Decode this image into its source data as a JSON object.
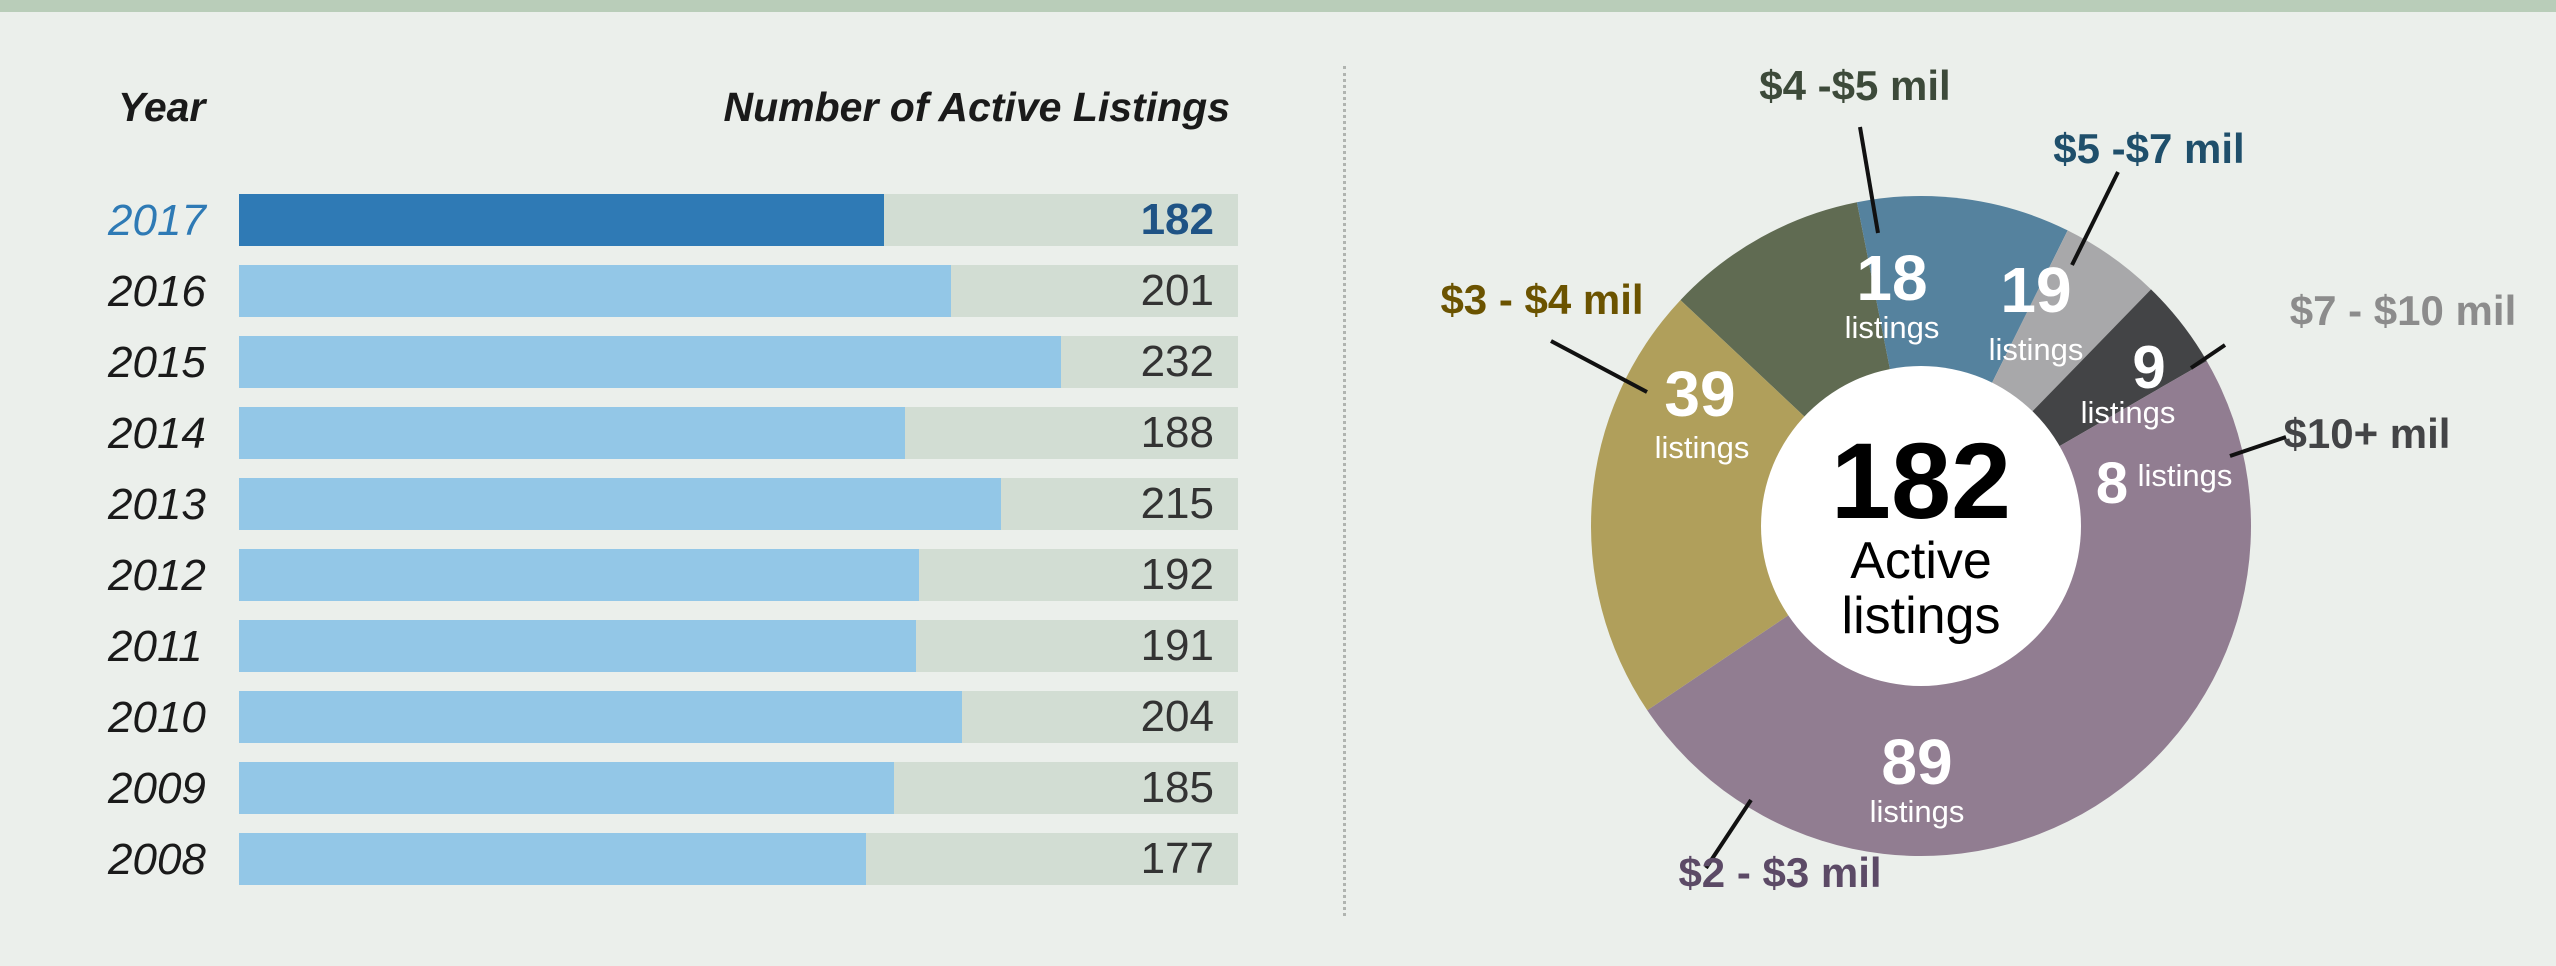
{
  "headers": {
    "year": "Year",
    "count": "Number of Active Listings"
  },
  "colors": {
    "bar": "#93c7e7",
    "bar_highlight": "#2f7ab5",
    "track": "#d2ddd3",
    "value_highlight": "#1f5385",
    "year_highlight": "#2e7ab5"
  },
  "chart_data": [
    {
      "type": "bar",
      "orientation": "horizontal",
      "xlabel": "Number of Active Listings",
      "ylabel": "Year",
      "categories": [
        "2017",
        "2016",
        "2015",
        "2014",
        "2013",
        "2012",
        "2011",
        "2010",
        "2009",
        "2008"
      ],
      "values": [
        182,
        201,
        232,
        188,
        215,
        192,
        191,
        204,
        185,
        177
      ],
      "xlim": [
        0,
        282
      ],
      "highlight": "2017"
    },
    {
      "type": "pie",
      "donut": true,
      "center_value": "182",
      "center_text": [
        "Active",
        "listings"
      ],
      "unit_label": "listings",
      "slices": [
        {
          "label": "$4 -$5 mil",
          "value": 18,
          "color": "#606b52",
          "label_color": "#3d4a3a"
        },
        {
          "label": "$5 -$7 mil",
          "value": 19,
          "color": "#55829e",
          "label_color": "#1f4f6b"
        },
        {
          "label": "$7 - $10 mil",
          "value": 9,
          "color": "#a8a8aa",
          "label_color": "#8c8c8c"
        },
        {
          "label": "$10+ mil",
          "value": 8,
          "color": "#434446",
          "label_color": "#434446"
        },
        {
          "label": "$2 - $3 mil",
          "value": 89,
          "color": "#917d91",
          "label_color": "#5c4a66"
        },
        {
          "label": "$3 - $4 mil",
          "value": 39,
          "color": "#b09f5b",
          "label_color": "#6b5300"
        }
      ]
    }
  ]
}
